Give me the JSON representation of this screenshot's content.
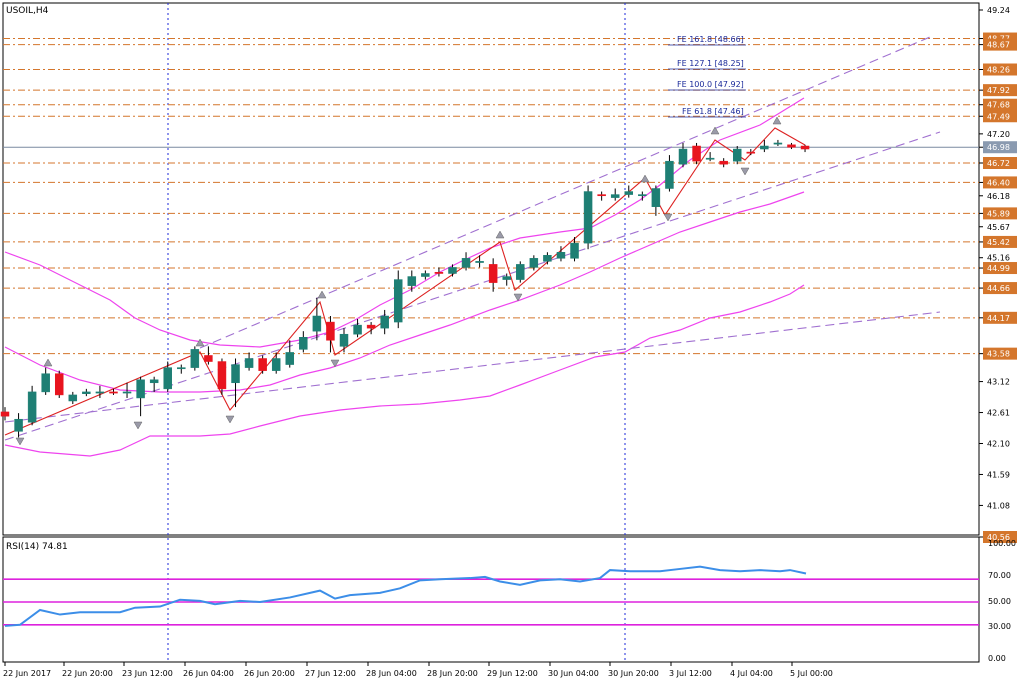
{
  "chart": {
    "symbol_label": "USOIL,H4",
    "current_price": "46.98",
    "price_ticks": [
      "49.24",
      "48.77",
      "48.67",
      "48.26",
      "47.92",
      "47.68",
      "47.49",
      "47.20",
      "46.98",
      "46.72",
      "46.40",
      "46.18",
      "45.89",
      "45.67",
      "45.42",
      "45.16",
      "44.99",
      "44.66",
      "44.17",
      "43.58",
      "43.12",
      "42.61",
      "42.10",
      "41.59",
      "41.08",
      "40.56"
    ],
    "fib_labels": [
      "FE 161.8 [48.66]",
      "FE 127.1 [48.25]",
      "FE 100.0 [47.92]",
      "FE 61.8 [47.46]"
    ],
    "time_labels": [
      "22 Jun 2017",
      "22 Jun 20:00",
      "23 Jun 12:00",
      "26 Jun 04:00",
      "26 Jun 20:00",
      "27 Jun 12:00",
      "28 Jun 04:00",
      "28 Jun 20:00",
      "29 Jun 12:00",
      "30 Jun 04:00",
      "30 Jun 20:00",
      "3 Jul 12:00",
      "4 Jul 04:00",
      "5 Jul 00:00"
    ],
    "colors": {
      "bull": "#1e7f74",
      "bear": "#e8141e",
      "level": "#d4762c",
      "bands": "#ee44ee",
      "channel": "#a070d0",
      "zigzag": "#dd2222",
      "rsi": "#3c8ee8",
      "rsi_levels": "#dd22dd",
      "tag": "#d4762c",
      "current": "#8a9ab0"
    }
  },
  "rsi": {
    "label": "RSI(14) 74.81",
    "ticks": [
      "100.00",
      "70.00",
      "50.00",
      "30.00",
      "0.00"
    ]
  }
}
